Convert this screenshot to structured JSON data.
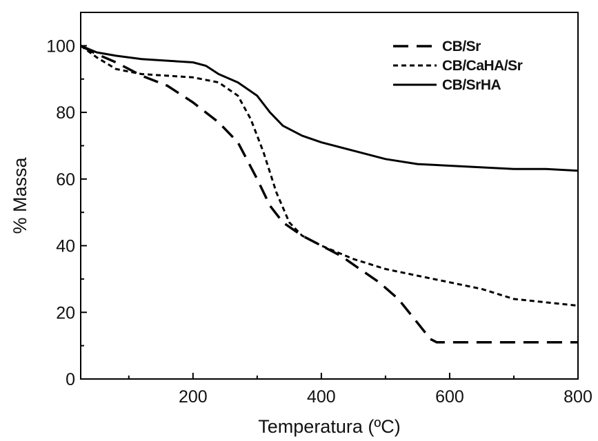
{
  "chart_data": {
    "type": "line",
    "xlabel": "Temperatura (ºC)",
    "ylabel": "% Massa",
    "xlim": [
      25,
      800
    ],
    "ylim": [
      0,
      110
    ],
    "xticks": [
      200,
      400,
      600,
      800
    ],
    "yticks": [
      0,
      20,
      40,
      60,
      80,
      100
    ],
    "legend_position": "top-right",
    "grid": false,
    "series": [
      {
        "name": "CB/Sr",
        "dash": "dashed",
        "color": "#000000",
        "points": [
          [
            25,
            100
          ],
          [
            50,
            97.5
          ],
          [
            80,
            95
          ],
          [
            120,
            91
          ],
          [
            160,
            88
          ],
          [
            200,
            83
          ],
          [
            240,
            77
          ],
          [
            270,
            71
          ],
          [
            300,
            60
          ],
          [
            320,
            52
          ],
          [
            340,
            47
          ],
          [
            370,
            43
          ],
          [
            400,
            40
          ],
          [
            430,
            37
          ],
          [
            460,
            33
          ],
          [
            490,
            29
          ],
          [
            520,
            24
          ],
          [
            545,
            18
          ],
          [
            570,
            12
          ],
          [
            580,
            11
          ],
          [
            620,
            11
          ],
          [
            700,
            11
          ],
          [
            800,
            11
          ]
        ]
      },
      {
        "name": "CB/CaHA/Sr",
        "dash": "dotted",
        "color": "#000000",
        "points": [
          [
            25,
            100
          ],
          [
            50,
            96.5
          ],
          [
            80,
            93
          ],
          [
            120,
            91.5
          ],
          [
            160,
            91
          ],
          [
            200,
            90.5
          ],
          [
            240,
            89
          ],
          [
            270,
            85
          ],
          [
            290,
            78
          ],
          [
            310,
            68
          ],
          [
            330,
            56
          ],
          [
            350,
            47
          ],
          [
            370,
            43
          ],
          [
            400,
            40
          ],
          [
            450,
            36
          ],
          [
            500,
            33
          ],
          [
            550,
            31
          ],
          [
            600,
            29
          ],
          [
            650,
            27
          ],
          [
            700,
            24
          ],
          [
            750,
            23
          ],
          [
            800,
            22
          ]
        ]
      },
      {
        "name": "CB/SrHA",
        "dash": "solid",
        "color": "#000000",
        "points": [
          [
            25,
            100
          ],
          [
            50,
            98
          ],
          [
            80,
            97
          ],
          [
            120,
            96
          ],
          [
            160,
            95.5
          ],
          [
            200,
            95
          ],
          [
            220,
            94
          ],
          [
            240,
            91.5
          ],
          [
            270,
            89
          ],
          [
            300,
            85
          ],
          [
            320,
            80
          ],
          [
            340,
            76
          ],
          [
            370,
            73
          ],
          [
            400,
            71
          ],
          [
            450,
            68.5
          ],
          [
            500,
            66
          ],
          [
            550,
            64.5
          ],
          [
            600,
            64
          ],
          [
            650,
            63.5
          ],
          [
            700,
            63
          ],
          [
            750,
            63
          ],
          [
            800,
            62.5
          ]
        ]
      }
    ]
  }
}
